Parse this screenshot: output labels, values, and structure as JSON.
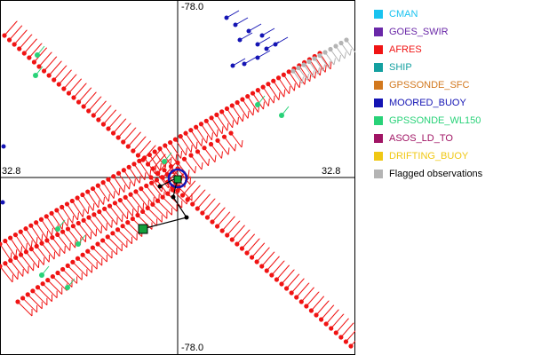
{
  "axes": {
    "top_label": "-78.0",
    "bottom_label": "-78.0",
    "left_label": "32.8",
    "right_label": "32.8"
  },
  "legend": [
    {
      "label": "CMAN",
      "color": "#19C3F0"
    },
    {
      "label": "GOES_SWIR",
      "color": "#6A28A8"
    },
    {
      "label": "AFRES",
      "color": "#F01414"
    },
    {
      "label": "SHIP",
      "color": "#14A0A0"
    },
    {
      "label": "GPSSONDE_SFC",
      "color": "#D2781E"
    },
    {
      "label": "MOORED_BUOY",
      "color": "#1414B4"
    },
    {
      "label": "GPSSONDE_WL150",
      "color": "#28D278"
    },
    {
      "label": "ASOS_LD_TO",
      "color": "#A01464"
    },
    {
      "label": "DRIFTING_BUOY",
      "color": "#F0C814"
    },
    {
      "label": "Flagged observations",
      "color": "#B4B4B4"
    }
  ]
}
